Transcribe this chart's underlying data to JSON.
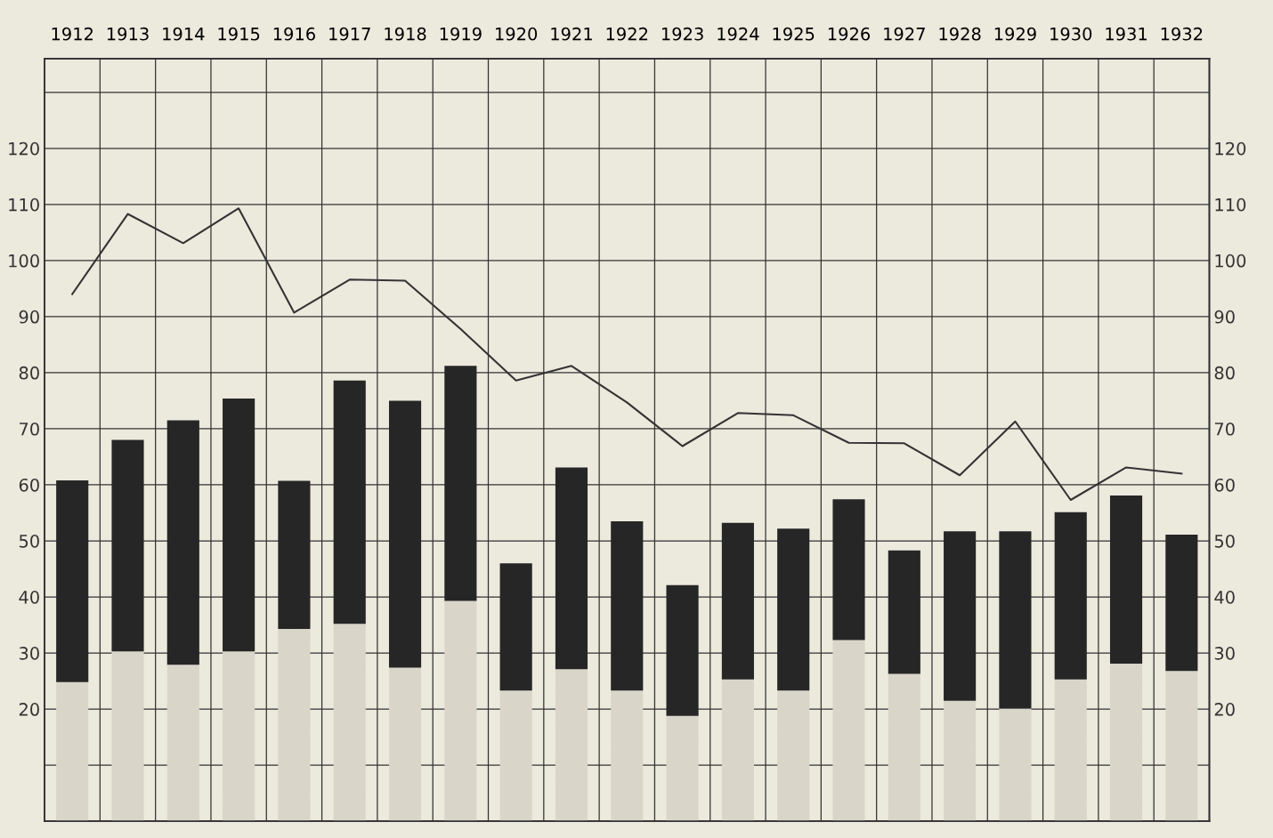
{
  "chart_data": {
    "type": "bar",
    "stacked": true,
    "categories": [
      "1912",
      "1913",
      "1914",
      "1915",
      "1916",
      "1917",
      "1918",
      "1919",
      "1920",
      "1921",
      "1922",
      "1923",
      "1924",
      "1925",
      "1926",
      "1927",
      "1928",
      "1929",
      "1930",
      "1931",
      "1932"
    ],
    "series": [
      {
        "color": "#d9d5c9",
        "values": [
          24.8,
          30.3,
          27.9,
          30.3,
          34.3,
          35.2,
          27.4,
          39.3,
          23.3,
          27.1,
          23.3,
          18.8,
          25.3,
          23.3,
          32.3,
          26.3,
          21.5,
          20.1,
          25.3,
          28.1,
          26.8
        ]
      },
      {
        "color": "#262626",
        "values": [
          36.0,
          37.7,
          43.6,
          45.1,
          26.4,
          43.4,
          47.6,
          41.9,
          22.7,
          36.0,
          30.2,
          23.3,
          27.9,
          28.9,
          25.1,
          22.0,
          30.2,
          31.6,
          29.8,
          30.0,
          24.3
        ]
      },
      {
        "type": "line",
        "color": "#333333",
        "values": [
          94.0,
          108.3,
          103.1,
          109.3,
          90.7,
          96.6,
          96.4,
          87.8,
          78.6,
          81.2,
          74.7,
          66.9,
          72.8,
          72.4,
          67.5,
          67.4,
          61.7,
          71.3,
          57.3,
          63.1,
          62.0
        ]
      }
    ],
    "ylim": [
      0,
      136
    ],
    "yticks": [
      {
        "value": 10,
        "label": null
      },
      20,
      30,
      40,
      50,
      60,
      70,
      80,
      90,
      100,
      110,
      120,
      {
        "value": 130,
        "label": null
      }
    ],
    "y2lim": [
      0,
      136
    ],
    "y2ticks": [
      {
        "value": 10,
        "label": null
      },
      20,
      30,
      40,
      50,
      60,
      70,
      80,
      90,
      100,
      110,
      120,
      {
        "value": 130,
        "label": null
      }
    ],
    "grid": true,
    "line_style": "solid",
    "marker": "none",
    "legend": false
  }
}
